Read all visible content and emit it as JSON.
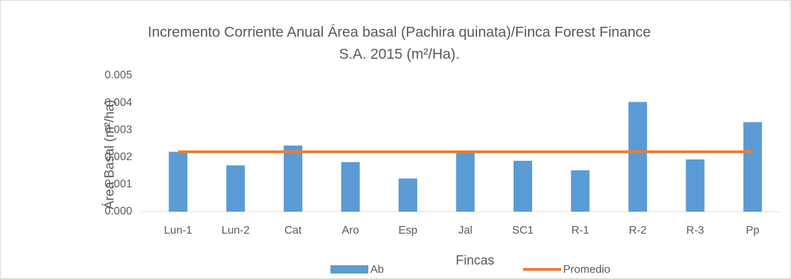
{
  "chart_data": {
    "type": "bar",
    "title": [
      "Incremento Corriente Anual Área basal (Pachira quinata)/Finca  Forest Finance",
      "S.A. 2015 (m²/Ha)."
    ],
    "x_label": "Fincas",
    "y_label": "Área Basal (m²/ha)",
    "categories": [
      "Lun-1",
      "Lun-2",
      "Cat",
      "Aro",
      "Esp",
      "Jal",
      "SC1",
      "R-1",
      "R-2",
      "R-3",
      "Pp"
    ],
    "series": [
      {
        "name": "Ab",
        "type": "bar",
        "color": "#5b9bd5",
        "values": [
          0.0022,
          0.0017,
          0.00243,
          0.00182,
          0.00122,
          0.0022,
          0.00187,
          0.00152,
          0.00403,
          0.00192,
          0.00329
        ]
      },
      {
        "name": "Promedio",
        "type": "line",
        "color": "#ed7d31",
        "values": [
          0.0022,
          0.0022,
          0.0022,
          0.0022,
          0.0022,
          0.0022,
          0.0022,
          0.0022,
          0.0022,
          0.0022,
          0.0022
        ]
      }
    ],
    "ylim": [
      0,
      0.005
    ],
    "yticks": [
      {
        "value": 0,
        "label": "0.000"
      },
      {
        "value": 0.001,
        "label": "0.001"
      },
      {
        "value": 0.002,
        "label": "0.002"
      },
      {
        "value": 0.003,
        "label": "0.003"
      },
      {
        "value": 0.004,
        "label": "0.004"
      },
      {
        "value": 0.005,
        "label": "0.005"
      }
    ],
    "grid": false,
    "legend": "bottom"
  }
}
